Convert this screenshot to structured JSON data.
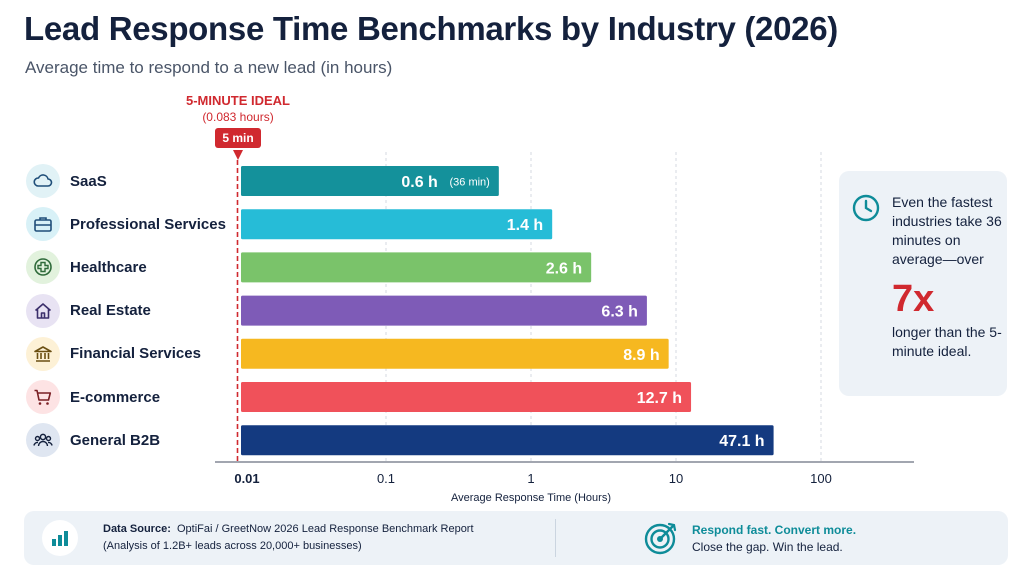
{
  "header": {
    "title": "Lead Response Time Benchmarks by Industry (2026)",
    "subtitle": "Average time to respond to a new lead (in hours)"
  },
  "ideal_marker": {
    "label": "5-MINUTE IDEAL",
    "sub_label": "(0.083 hours)",
    "pill": "5 min",
    "value_hours": 0.083,
    "color": "#d0292f"
  },
  "chart_data": {
    "type": "bar",
    "orientation": "horizontal",
    "x_scale": "log",
    "xlim": [
      0.01,
      100
    ],
    "xlabel": "Average Response Time (Hours)",
    "ylabel": "",
    "title": "Lead Response Time Benchmarks by Industry (2026)",
    "x_ticks": [
      0.01,
      0.1,
      1,
      10,
      100
    ],
    "x_tick_labels": [
      "0.01",
      "0.1",
      "1",
      "10",
      "100"
    ],
    "grid": "vertical dashed",
    "categories": [
      "SaaS",
      "Professional Services",
      "Healthcare",
      "Real Estate",
      "Financial Services",
      "E-commerce",
      "General B2B"
    ],
    "values": [
      0.6,
      1.4,
      2.6,
      6.3,
      8.9,
      12.7,
      47.1
    ],
    "value_labels": [
      "0.6 h",
      "1.4 h",
      "2.6 h",
      "6.3 h",
      "8.9 h",
      "12.7 h",
      "47.1 h"
    ],
    "value_sub_labels": [
      "(36 min)",
      "",
      "",
      "",
      "",
      "",
      ""
    ],
    "colors": [
      "#14919b",
      "#26bcd7",
      "#7ac36a",
      "#7e5bb7",
      "#f6b820",
      "#f0515a",
      "#143a80"
    ]
  },
  "categories_meta": [
    {
      "icon": "cloud-icon",
      "icon_bg": "#e1f2f6",
      "icon_color": "#1f4e79"
    },
    {
      "icon": "briefcase-icon",
      "icon_bg": "#d8f1f7",
      "icon_color": "#1f4e79"
    },
    {
      "icon": "medical-cross-icon",
      "icon_bg": "#e2f2dd",
      "icon_color": "#2f6b3a"
    },
    {
      "icon": "house-icon",
      "icon_bg": "#e8e3f3",
      "icon_color": "#3b2f6b"
    },
    {
      "icon": "bank-icon",
      "icon_bg": "#fdf1d6",
      "icon_color": "#6b4f12"
    },
    {
      "icon": "shopping-cart-icon",
      "icon_bg": "#fde3e4",
      "icon_color": "#7a1f24"
    },
    {
      "icon": "group-users-icon",
      "icon_bg": "#dfe6f1",
      "icon_color": "#14213d"
    }
  ],
  "callout": {
    "icon": "clock-icon",
    "text_before": "Even the fastest industries take 36 minutes on average—over",
    "big": "7x",
    "text_after": "longer than the 5-minute ideal.",
    "accent": "#d0292f"
  },
  "footer": {
    "source_label": "Data Source:",
    "source_text": "OptiFai / GreetNow 2026 Lead Response Benchmark Report",
    "source_detail": "(Analysis of 1.2B+ leads across 20,000+ businesses)",
    "cta_title": "Respond fast. Convert more.",
    "cta_text": "Close the gap. Win the lead.",
    "cta_color": "#0e8c99",
    "source_icon": "bar-chart-icon",
    "cta_icon": "target-icon"
  }
}
